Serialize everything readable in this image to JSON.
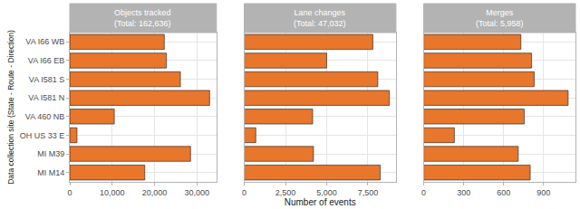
{
  "chart_data": [
    {
      "type": "bar",
      "orientation": "horizontal",
      "title": "Objects tracked\n(Total: 162,636)",
      "ylabel": "Data collection site (State - Route - Direction)",
      "categories": [
        "VA I66 WB",
        "VA I66 EB",
        "VA I581 S",
        "VA I581 N",
        "VA 460 NB",
        "OH US 33 E",
        "MI M39",
        "MI M14"
      ],
      "values": [
        22300,
        22800,
        26100,
        33000,
        10500,
        1700,
        28500,
        17700
      ],
      "color": "#E8762B",
      "xlim": [
        0,
        34600
      ],
      "xticks": [
        0,
        {
          "value": 10000,
          "label": "10,000"
        },
        {
          "value": 20000,
          "label": "20,000"
        },
        {
          "value": 30000,
          "label": "30,000"
        }
      ],
      "grid": true
    },
    {
      "type": "bar",
      "orientation": "horizontal",
      "title": "Lane changes\n(Total: 47,032)",
      "xlabel": "Number of events",
      "categories": [
        "VA I66 WB",
        "VA I66 EB",
        "VA I581 S",
        "VA I581 N",
        "VA 460 NB",
        "OH US 33 E",
        "MI M39",
        "MI M14"
      ],
      "values": [
        7800,
        5000,
        8100,
        8800,
        4150,
        700,
        4200,
        8250
      ],
      "color": "#E8762B",
      "xlim": [
        0,
        9200
      ],
      "xticks": [
        0,
        {
          "value": 2500,
          "label": "2,500"
        },
        {
          "value": 5000,
          "label": "5,000"
        },
        {
          "value": 7500,
          "label": "7,500"
        }
      ],
      "grid": true
    },
    {
      "type": "bar",
      "orientation": "horizontal",
      "title": "Merges\n(Total: 5,958)",
      "categories": [
        "VA I66 WB",
        "VA I66 EB",
        "VA I581 S",
        "VA I581 N",
        "VA 460 NB",
        "OH US 33 E",
        "MI M39",
        "MI M14"
      ],
      "values": [
        730,
        810,
        830,
        1085,
        755,
        230,
        710,
        800
      ],
      "color": "#E8762B",
      "xlim": [
        0,
        1140
      ],
      "xticks": [
        0,
        300,
        600,
        900
      ],
      "grid": true
    }
  ]
}
